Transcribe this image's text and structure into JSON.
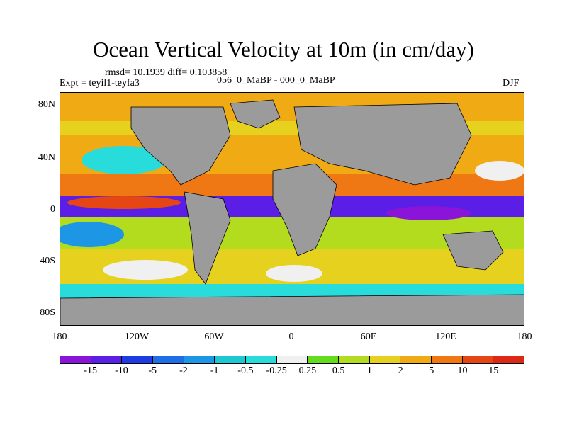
{
  "title": "Ocean Vertical Velocity at 10m (in cm/day)",
  "stats": "rmsd= 10.1939 diff= 0.103858",
  "experiment": "Expt = teyil1-teyfa3",
  "difference_label": "056_0_MaBP - 000_0_MaBP",
  "season": "DJF",
  "lat_labels": [
    "80N",
    "40N",
    "0",
    "40S",
    "80S"
  ],
  "lon_labels": [
    "180",
    "120W",
    "60W",
    "0",
    "60E",
    "120E",
    "180"
  ],
  "colorbar": {
    "labels": [
      "-15",
      "-10",
      "-5",
      "-2",
      "-1",
      "-0.5",
      "-0.25",
      "0.25",
      "0.5",
      "1",
      "2",
      "5",
      "10",
      "15"
    ],
    "colors": [
      "#8a14d8",
      "#5a1ee6",
      "#1e3ce6",
      "#1e6ee6",
      "#1e96e6",
      "#1ec8d2",
      "#28dcdc",
      "#f0f0f0",
      "#64dc1e",
      "#b4dc1e",
      "#e6d21e",
      "#f0aa14",
      "#f07814",
      "#e64614",
      "#dc2814"
    ]
  },
  "land_color": "#9b9b9b"
}
